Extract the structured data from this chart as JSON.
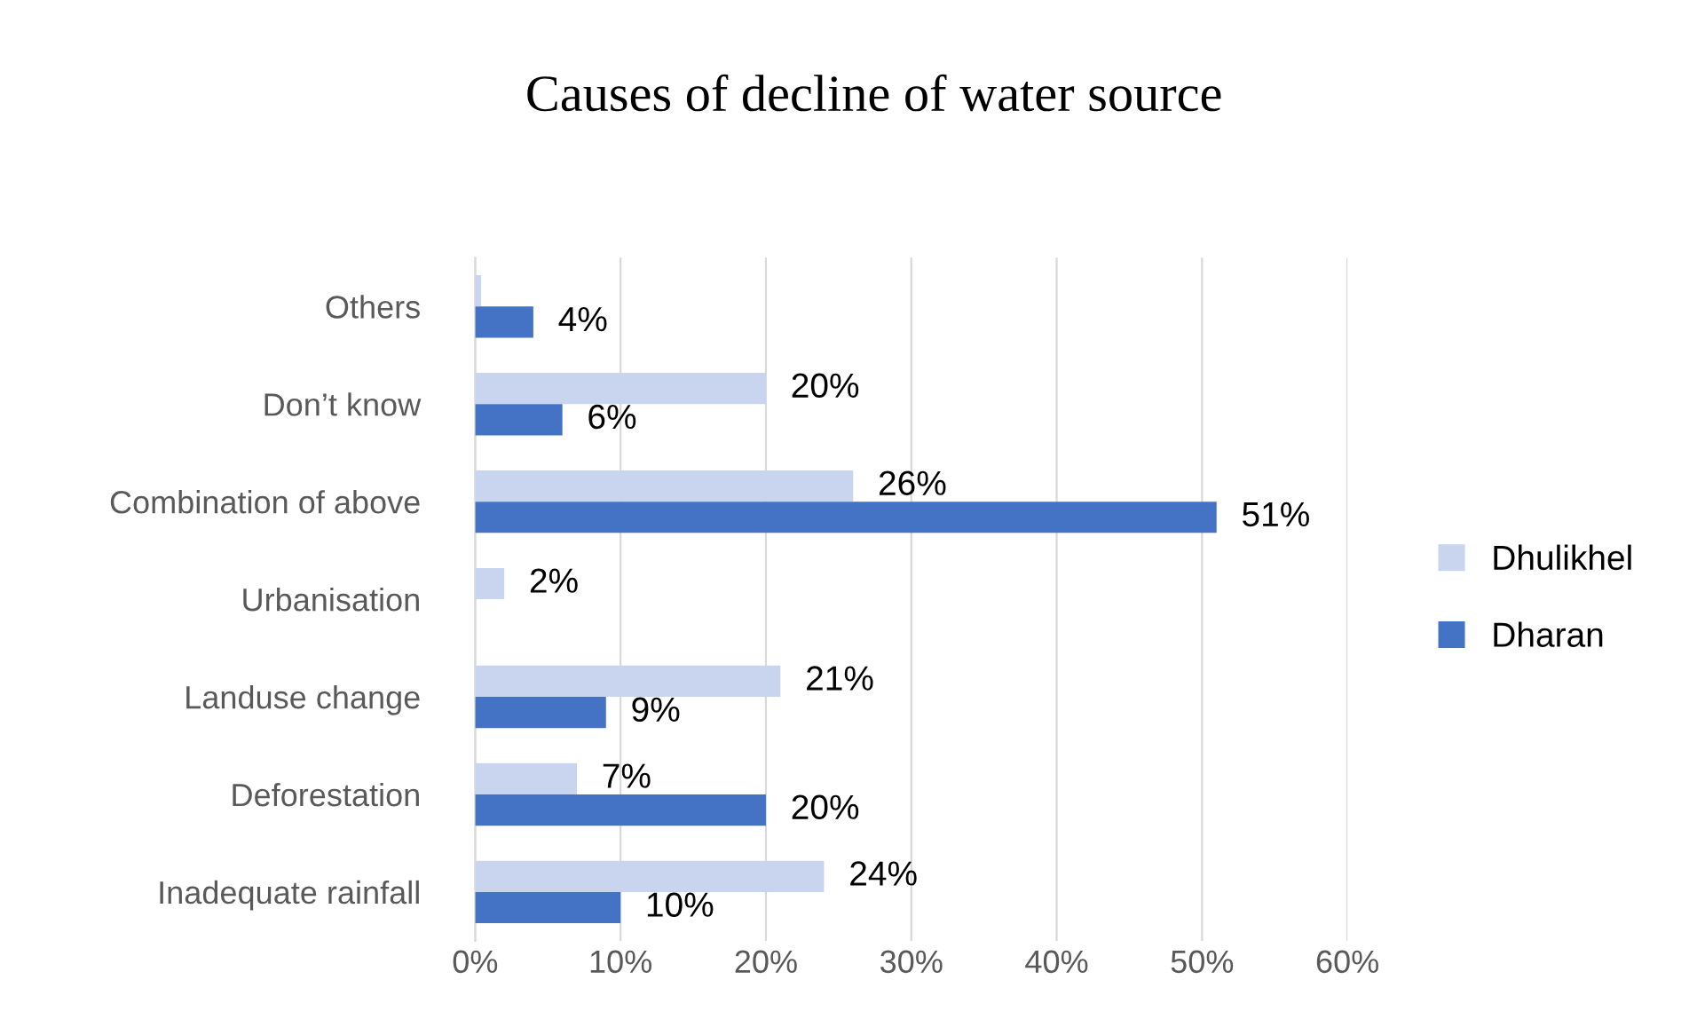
{
  "chart_data": {
    "type": "bar",
    "orientation": "horizontal",
    "title": "Causes of decline of water source",
    "categories": [
      "Others",
      "Don’t know",
      "Combination of above",
      "Urbanisation",
      "Landuse change",
      "Deforestation",
      "Inadequate rainfall"
    ],
    "series": [
      {
        "name": "Dhulikhel",
        "color": "#c9d5ee",
        "values": [
          0.4,
          20,
          26,
          2,
          21,
          7,
          24
        ],
        "value_labels": [
          null,
          "20%",
          "26%",
          "2%",
          "21%",
          "7%",
          "24%"
        ]
      },
      {
        "name": "Dharan",
        "color": "#4472c4",
        "values": [
          4,
          6,
          51,
          null,
          9,
          20,
          10
        ],
        "value_labels": [
          "4%",
          "6%",
          "51%",
          null,
          "9%",
          "20%",
          "10%"
        ]
      }
    ],
    "xlim": [
      0,
      60
    ],
    "xticks": [
      {
        "value": 0,
        "label": "0%"
      },
      {
        "value": 10,
        "label": "10%"
      },
      {
        "value": 20,
        "label": "20%"
      },
      {
        "value": 30,
        "label": "30%"
      },
      {
        "value": 40,
        "label": "40%"
      },
      {
        "value": 50,
        "label": "50%"
      },
      {
        "value": 60,
        "label": "60%"
      }
    ],
    "grid": "x",
    "legend": "right"
  }
}
